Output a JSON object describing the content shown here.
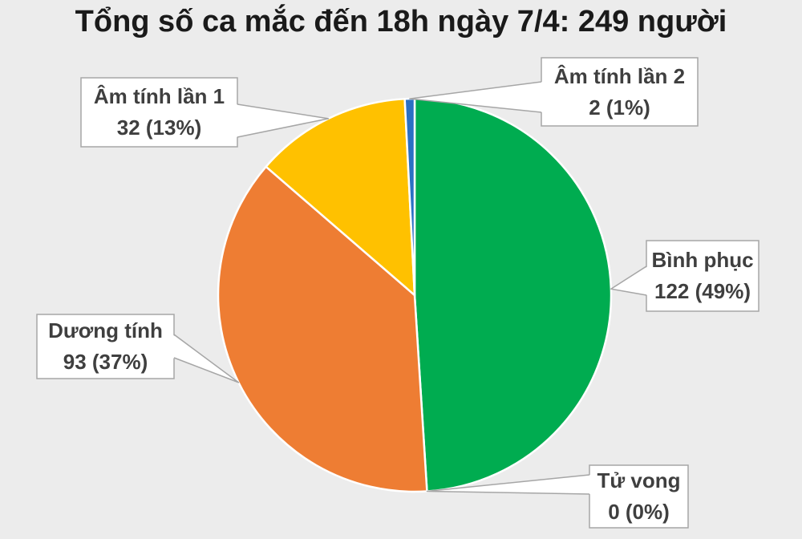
{
  "page": {
    "background_color": "#ECECEC",
    "callout_box_fill": "#FFFFFF",
    "callout_border_color": "#A6A6A6",
    "callout_text_color": "#3F3F3F",
    "title_color": "#1A1A1A"
  },
  "chart_data": {
    "type": "pie",
    "title": "Tổng số ca mắc đến 18h ngày 7/4: 249 người",
    "total": 249,
    "start_angle_deg": 0,
    "direction": "clockwise",
    "slice_border_color": "#FFFFFF",
    "labels_style": "callout boxes with leader wedges",
    "slices": [
      {
        "id": "binh-phuc",
        "label": "Bình phục",
        "value": 122,
        "pct": 49,
        "value_text": "122 (49%)",
        "color": "#00AC50"
      },
      {
        "id": "tu-vong",
        "label": "Tử vong",
        "value": 0,
        "pct": 0,
        "value_text": "0 (0%)",
        "color": "#808080"
      },
      {
        "id": "duong-tinh",
        "label": "Dương tính",
        "value": 93,
        "pct": 37,
        "value_text": "93 (37%)",
        "color": "#EE7D33"
      },
      {
        "id": "am-tinh-lan-1",
        "label": "Âm tính lần 1",
        "value": 32,
        "pct": 13,
        "value_text": "32 (13%)",
        "color": "#FFC100"
      },
      {
        "id": "am-tinh-lan-2",
        "label": "Âm tính lần 2",
        "value": 2,
        "pct": 1,
        "value_text": "2 (1%)",
        "color": "#2B70C4"
      }
    ]
  }
}
